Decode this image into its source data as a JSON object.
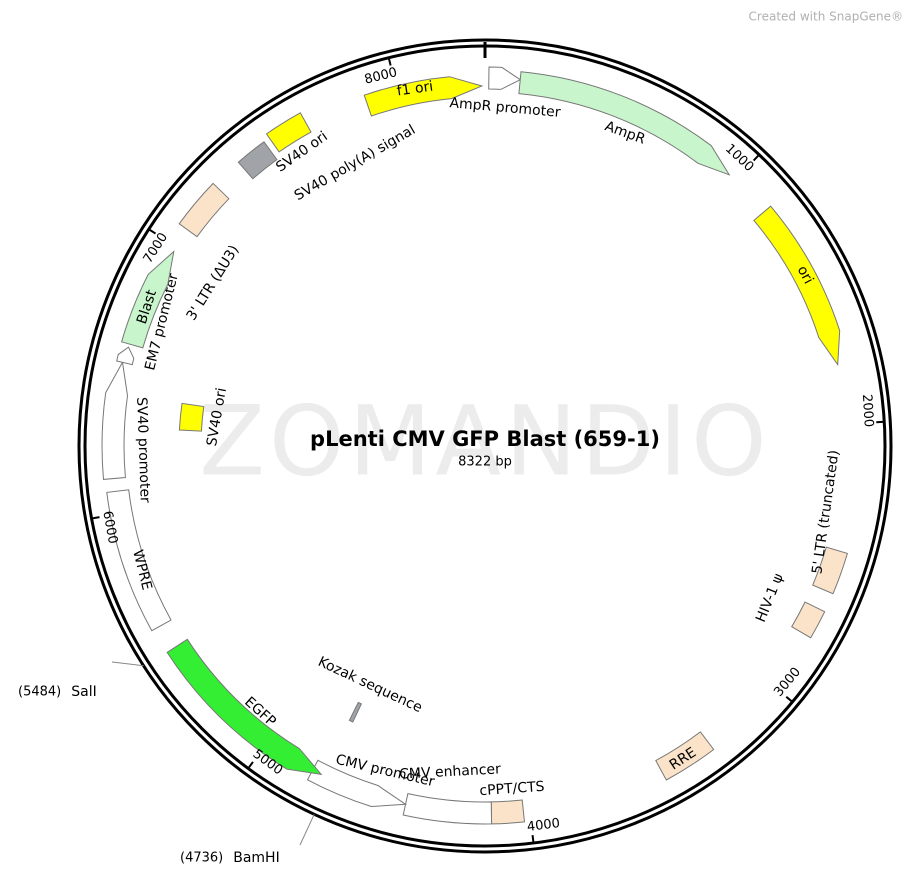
{
  "credit": "Created with SnapGene®",
  "watermark": "ZOMANDIO",
  "title": "pLenti CMV GFP Blast (659-1)",
  "size": {
    "value": 8322,
    "label": "8322 bp"
  },
  "ticks": [
    1000,
    2000,
    3000,
    4000,
    5000,
    6000,
    7000,
    8000
  ],
  "features": [
    {
      "label": "f1 ori",
      "color": "#ffff00"
    },
    {
      "label": "AmpR promoter",
      "color": "#ffffff"
    },
    {
      "label": "AmpR",
      "color": "#c8f5cb"
    },
    {
      "label": "ori",
      "color": "#ffff00"
    },
    {
      "label": "5' LTR (truncated)",
      "color": "#fbe3c9"
    },
    {
      "label": "HIV-1 ψ",
      "color": "#fbe3c9"
    },
    {
      "label": "RRE",
      "color": "#fbe3c9"
    },
    {
      "label": "cPPT/CTS",
      "color": "#fbe3c9"
    },
    {
      "label": "CMV enhancer",
      "color": "#ffffff"
    },
    {
      "label": "CMV promoter",
      "color": "#ffffff"
    },
    {
      "label": "EGFP",
      "color": "#33ee33"
    },
    {
      "label": "WPRE",
      "color": "#ffffff"
    },
    {
      "label": "SV40 promoter",
      "color": "#ffffff"
    },
    {
      "label": "EM7 promoter",
      "color": "#ffffff"
    },
    {
      "label": "Blast",
      "color": "#c8f5cb"
    },
    {
      "label": "3' LTR (ΔU3)",
      "color": "#fbe3c9"
    },
    {
      "label": "SV40 poly(A) signal",
      "color": "#a0a4a8"
    },
    {
      "label": "SV40 ori",
      "color": "#ffff00"
    },
    {
      "label": "SV40 ori",
      "color": "#ffff00"
    },
    {
      "label": "Kozak sequence",
      "color": "#a0a4a8"
    }
  ],
  "enzymes": [
    {
      "name": "SalI",
      "position": {
        "value": 5484,
        "label": "(5484)"
      }
    },
    {
      "name": "BamHI",
      "position": {
        "value": 4736,
        "label": "(4736)"
      }
    }
  ]
}
